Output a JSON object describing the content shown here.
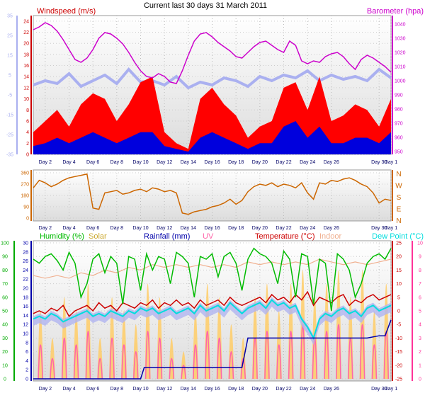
{
  "title": "Current last 30 days 31 March 2011",
  "colors": {
    "wind_avg": "#0000dd",
    "wind_gust": "#ff0000",
    "barometer": "#cc00cc",
    "baro_shadow": "#aab0f0",
    "wind_dir": "#cc6600",
    "humidity": "#00bb00",
    "solar": "#ffcc66",
    "rainfall": "#0000aa",
    "uv": "#ff66aa",
    "temperature": "#cc0000",
    "indoor": "#f0b090",
    "dewpoint": "#00dddd",
    "dewpoint_band": "#b0b4f0",
    "left_axis": "#aab0f0",
    "green_axis": "#00aa00",
    "pink_axis": "#ff3399"
  },
  "chart_data": [
    {
      "type": "line",
      "name": "wind-barometer",
      "legend": {
        "windspeed": "Windspeed (m/s)",
        "barometer": "Barometer (hpa)"
      },
      "x_ticks": [
        "Day 2",
        "Day 4",
        "Day 6",
        "Day 8",
        "Day 10",
        "Day 12",
        "Day 14",
        "Day 16",
        "Day 18",
        "Day 20",
        "Day 22",
        "Day 24",
        "Day 26",
        "Day 30",
        "Day 1"
      ],
      "x_tick_days": [
        2,
        4,
        6,
        8,
        10,
        12,
        14,
        16,
        18,
        20,
        22,
        24,
        26,
        30,
        31
      ],
      "x_range": [
        1,
        31
      ],
      "left_axis_ticks": [
        35,
        25,
        15,
        5,
        -5,
        -15,
        -25,
        -35
      ],
      "wind_ticks": [
        24,
        22,
        20,
        18,
        16,
        14,
        12,
        10,
        8,
        6,
        4,
        2,
        0
      ],
      "wind_range": [
        0,
        25
      ],
      "baro_ticks": [
        1040,
        1030,
        1020,
        1010,
        1000,
        990,
        980,
        970,
        960,
        950
      ],
      "baro_range": [
        948,
        1046
      ],
      "barometer": {
        "x": [
          1,
          1.5,
          2,
          2.5,
          3,
          3.5,
          4,
          4.5,
          5,
          5.5,
          6,
          6.5,
          7,
          7.5,
          8,
          8.5,
          9,
          9.5,
          10,
          10.5,
          11,
          11.5,
          12,
          12.5,
          13,
          13.5,
          14,
          14.5,
          15,
          15.5,
          16,
          16.5,
          17,
          17.5,
          18,
          18.5,
          19,
          19.5,
          20,
          20.5,
          21,
          21.5,
          22,
          22.5,
          23,
          23.5,
          24,
          24.5,
          25,
          25.5,
          26,
          26.5,
          27,
          27.5,
          28,
          28.5,
          29,
          29.5,
          30,
          30.5,
          31
        ],
        "y": [
          1036,
          1038,
          1041,
          1039,
          1035,
          1029,
          1022,
          1015,
          1013,
          1016,
          1022,
          1030,
          1034,
          1033,
          1030,
          1026,
          1020,
          1013,
          1007,
          1003,
          1002,
          1005,
          1003,
          999,
          998,
          1007,
          1018,
          1028,
          1033,
          1034,
          1031,
          1027,
          1024,
          1021,
          1017,
          1016,
          1020,
          1024,
          1027,
          1028,
          1025,
          1022,
          1020,
          1028,
          1025,
          1014,
          1012,
          1014,
          1013,
          1017,
          1019,
          1020,
          1017,
          1012,
          1008,
          1015,
          1018,
          1016,
          1013,
          1010,
          1006
        ]
      },
      "baro_shadow": {
        "x": [
          1,
          2,
          3,
          4,
          5,
          6,
          7,
          8,
          9,
          10,
          11,
          12,
          13,
          14,
          15,
          16,
          17,
          18,
          19,
          20,
          21,
          22,
          23,
          24,
          25,
          26,
          27,
          28,
          29,
          30,
          31
        ],
        "y": [
          997,
          1000,
          998,
          1005,
          996,
          1000,
          1004,
          998,
          1008,
          999,
          1000,
          997,
          1003,
          995,
          999,
          997,
          1002,
          1000,
          996,
          1003,
          1000,
          1004,
          1002,
          1007,
          1000,
          1004,
          1001,
          1003,
          1000,
          1008,
          1002
        ]
      },
      "wind_gust": {
        "x": [
          1,
          2,
          3,
          4,
          5,
          6,
          7,
          8,
          9,
          10,
          11,
          12,
          13,
          14,
          15,
          16,
          17,
          18,
          19,
          20,
          21,
          22,
          23,
          24,
          25,
          26,
          27,
          28,
          29,
          30,
          31
        ],
        "y": [
          4,
          6,
          8,
          5,
          9,
          11,
          10,
          6,
          9,
          13,
          14,
          4,
          2,
          1,
          10,
          12,
          9,
          7,
          3,
          5,
          6,
          12,
          13,
          8,
          14,
          6,
          7,
          9,
          8,
          5,
          10
        ]
      },
      "wind_avg": {
        "x": [
          1,
          2,
          3,
          4,
          5,
          6,
          7,
          8,
          9,
          10,
          11,
          12,
          13,
          14,
          15,
          16,
          17,
          18,
          19,
          20,
          21,
          22,
          23,
          24,
          25,
          26,
          27,
          28,
          29,
          30,
          31
        ],
        "y": [
          1.5,
          2,
          3,
          2,
          3,
          4,
          3,
          2,
          3,
          4,
          4,
          1.5,
          1,
          0.5,
          3,
          4,
          3,
          2,
          1,
          2,
          2,
          5,
          6,
          3,
          5,
          2,
          2,
          3,
          3,
          2,
          4
        ]
      }
    },
    {
      "type": "line",
      "name": "wind-direction",
      "y_ticks": [
        360,
        270,
        180,
        90,
        0
      ],
      "y_range": [
        0,
        360
      ],
      "compass": [
        "N",
        "W",
        "S",
        "E",
        "N"
      ],
      "x_ticks": [
        "Day 2",
        "Day 4",
        "Day 6",
        "Day 8",
        "Day 10",
        "Day 12",
        "Day 14",
        "Day 16",
        "Day 18",
        "Day 20",
        "Day 22",
        "Day 24",
        "Day 26",
        "Day 30",
        "Day 1"
      ],
      "direction": {
        "x": [
          1,
          1.5,
          2,
          2.5,
          3,
          3.5,
          4,
          4.5,
          5,
          5.5,
          6,
          6.5,
          7,
          7.5,
          8,
          8.5,
          9,
          9.5,
          10,
          10.5,
          11,
          11.5,
          12,
          12.5,
          13,
          13.5,
          14,
          14.5,
          15,
          15.5,
          16,
          16.5,
          17,
          17.5,
          18,
          18.5,
          19,
          19.5,
          20,
          20.5,
          21,
          21.5,
          22,
          22.5,
          23,
          23.5,
          24,
          24.5,
          25,
          25.5,
          26,
          26.5,
          27,
          27.5,
          28,
          28.5,
          29,
          29.5,
          30,
          30.5,
          31
        ],
        "y": [
          240,
          300,
          280,
          250,
          270,
          300,
          320,
          330,
          340,
          350,
          80,
          70,
          200,
          210,
          220,
          190,
          200,
          220,
          230,
          210,
          240,
          230,
          210,
          220,
          200,
          40,
          30,
          50,
          60,
          70,
          90,
          100,
          120,
          150,
          110,
          140,
          210,
          250,
          270,
          260,
          280,
          250,
          270,
          260,
          240,
          280,
          200,
          150,
          280,
          270,
          300,
          290,
          310,
          320,
          300,
          270,
          250,
          200,
          120,
          150,
          140
        ]
      }
    },
    {
      "type": "line",
      "name": "humidity-temperature-rain",
      "legend": {
        "humidity": "Humidity (%)",
        "solar": "Solar",
        "rainfall": "Rainfall (mm)",
        "uv": "UV",
        "temperature": "Temperature (°C)",
        "indoor": "Indoor",
        "dewpoint": "Dew Point (°C)"
      },
      "x_ticks": [
        "Day 2",
        "Day 4",
        "Day 6",
        "Day 8",
        "Day 10",
        "Day 12",
        "Day 14",
        "Day 16",
        "Day 18",
        "Day 20",
        "Day 22",
        "Day 24",
        "Day 26",
        "Day 30",
        "Day 1"
      ],
      "humidity_ticks": [
        100,
        90,
        80,
        70,
        60,
        50,
        40,
        30,
        20,
        10,
        0
      ],
      "humidity_range": [
        0,
        100
      ],
      "rain_ticks": [
        30,
        28,
        26,
        24,
        22,
        20,
        18,
        16,
        14,
        12,
        10,
        8,
        6,
        4,
        2,
        0
      ],
      "rain_range": [
        0,
        30
      ],
      "temp_ticks": [
        25,
        20,
        15,
        10,
        5,
        0,
        -5,
        -10,
        -15,
        -20,
        -25
      ],
      "temp_range": [
        -25,
        25
      ],
      "uv_ticks": [
        10,
        9,
        8,
        7,
        6,
        5,
        4,
        3,
        2,
        1,
        0
      ],
      "uv_range": [
        0,
        10
      ],
      "humidity": {
        "x": [
          1,
          1.5,
          2,
          2.5,
          3,
          3.5,
          4,
          4.5,
          5,
          5.5,
          6,
          6.5,
          7,
          7.5,
          8,
          8.5,
          9,
          9.5,
          10,
          10.5,
          11,
          11.5,
          12,
          12.5,
          13,
          13.5,
          14,
          14.5,
          15,
          15.5,
          16,
          16.5,
          17,
          17.5,
          18,
          18.5,
          19,
          19.5,
          20,
          20.5,
          21,
          21.5,
          22,
          22.5,
          23,
          23.5,
          24,
          24.5,
          25,
          25.5,
          26,
          26.5,
          27,
          27.5,
          28,
          28.5,
          29,
          29.5,
          30,
          30.5,
          31
        ],
        "y": [
          88,
          85,
          90,
          92,
          87,
          80,
          93,
          85,
          60,
          70,
          88,
          92,
          78,
          90,
          85,
          55,
          90,
          88,
          65,
          92,
          80,
          90,
          88,
          70,
          93,
          90,
          85,
          60,
          90,
          88,
          92,
          75,
          90,
          93,
          85,
          65,
          88,
          96,
          92,
          90,
          85,
          70,
          94,
          88,
          60,
          92,
          90,
          55,
          88,
          85,
          50,
          92,
          88,
          80,
          60,
          70,
          85,
          90,
          92,
          88,
          96
        ]
      },
      "temperature": {
        "x": [
          1,
          1.5,
          2,
          2.5,
          3,
          3.5,
          4,
          4.5,
          5,
          5.5,
          6,
          6.5,
          7,
          7.5,
          8,
          8.5,
          9,
          9.5,
          10,
          10.5,
          11,
          11.5,
          12,
          12.5,
          13,
          13.5,
          14,
          14.5,
          15,
          15.5,
          16,
          16.5,
          17,
          17.5,
          18,
          18.5,
          19,
          19.5,
          20,
          20.5,
          21,
          21.5,
          22,
          22.5,
          23,
          23.5,
          24,
          24.5,
          25,
          25.5,
          26,
          26.5,
          27,
          27.5,
          28,
          28.5,
          29,
          29.5,
          30,
          30.5,
          31
        ],
        "y": [
          -1,
          0,
          -1,
          1,
          0,
          2,
          -2,
          0,
          1,
          2,
          0,
          3,
          1,
          2,
          0,
          3,
          2,
          1,
          3,
          2,
          4,
          1,
          3,
          2,
          4,
          2,
          3,
          1,
          4,
          2,
          3,
          4,
          2,
          5,
          3,
          2,
          3,
          4,
          5,
          3,
          6,
          4,
          5,
          3,
          6,
          4,
          7,
          2,
          5,
          4,
          3,
          5,
          6,
          2,
          4,
          3,
          5,
          6,
          4,
          5,
          6
        ]
      },
      "dewpoint": {
        "x": [
          1,
          1.5,
          2,
          2.5,
          3,
          3.5,
          4,
          4.5,
          5,
          5.5,
          6,
          6.5,
          7,
          7.5,
          8,
          8.5,
          9,
          9.5,
          10,
          10.5,
          11,
          11.5,
          12,
          12.5,
          13,
          13.5,
          14,
          14.5,
          15,
          15.5,
          16,
          16.5,
          17,
          17.5,
          18,
          18.5,
          19,
          19.5,
          20,
          20.5,
          21,
          21.5,
          22,
          22.5,
          23,
          23.5,
          24,
          24.5,
          25,
          25.5,
          26,
          26.5,
          27,
          27.5,
          28,
          28.5,
          29,
          29.5,
          30,
          30.5,
          31
        ],
        "y": [
          -3,
          -2,
          -3,
          -1,
          -2,
          -4,
          -3,
          -2,
          -1,
          0,
          -2,
          -1,
          -2,
          0,
          -1,
          -2,
          0,
          -1,
          1,
          0,
          1,
          -1,
          0,
          1,
          -1,
          0,
          1,
          -1,
          2,
          0,
          1,
          2,
          0,
          3,
          1,
          -1,
          1,
          2,
          3,
          1,
          4,
          2,
          3,
          1,
          2,
          -3,
          -6,
          -10,
          -3,
          -1,
          -2,
          0,
          1,
          -1,
          0,
          -2,
          1,
          2,
          0,
          1,
          2
        ]
      },
      "indoor": {
        "x": [
          1,
          2,
          3,
          4,
          5,
          6,
          7,
          8,
          9,
          10,
          11,
          12,
          13,
          14,
          15,
          16,
          17,
          18,
          19,
          20,
          21,
          22,
          23,
          24,
          25,
          26,
          27,
          28,
          29,
          30,
          31
        ],
        "y": [
          13,
          12,
          13,
          12,
          14,
          13,
          15,
          14,
          16,
          15,
          17,
          16,
          17,
          16,
          17,
          16,
          17,
          16,
          18,
          17,
          18,
          17,
          18,
          17,
          19,
          18,
          17,
          18,
          17,
          18,
          19
        ]
      },
      "rainfall": {
        "x": [
          1,
          9,
          10,
          10.3,
          11,
          18.5,
          19,
          19.3,
          20,
          28,
          29,
          30,
          30.5,
          31
        ],
        "y": [
          0,
          0,
          0,
          2.5,
          2.5,
          2.5,
          9,
          9,
          9,
          9,
          9,
          9.5,
          9.5,
          13
        ]
      },
      "solar_days": [
        1.6,
        2.6,
        3.6,
        4.6,
        5.6,
        6.6,
        7.6,
        8.6,
        9.6,
        10.6,
        11.6,
        12.6,
        13.6,
        14.6,
        15.6,
        16.6,
        17.6,
        18.6,
        19.6,
        20.6,
        21.6,
        22.6,
        23.6,
        24.6,
        25.6,
        26.6,
        27.6,
        28.6,
        29.6,
        30.6
      ],
      "solar_peak": [
        5,
        3,
        6,
        5,
        7,
        3,
        6,
        5,
        4,
        7,
        6,
        3,
        2,
        5,
        7,
        6,
        4,
        3,
        6,
        7,
        5,
        7,
        8,
        6,
        7,
        8,
        6,
        8,
        5,
        7
      ],
      "uv_peak": [
        2.5,
        1.5,
        3,
        2.5,
        3.5,
        1.5,
        3,
        2.5,
        2,
        3.5,
        3,
        1.5,
        1,
        2.5,
        3.5,
        3,
        2,
        1.5,
        3,
        3.5,
        2.5,
        3.5,
        4,
        3,
        3.5,
        4,
        3,
        4,
        2.5,
        3.5
      ]
    }
  ]
}
